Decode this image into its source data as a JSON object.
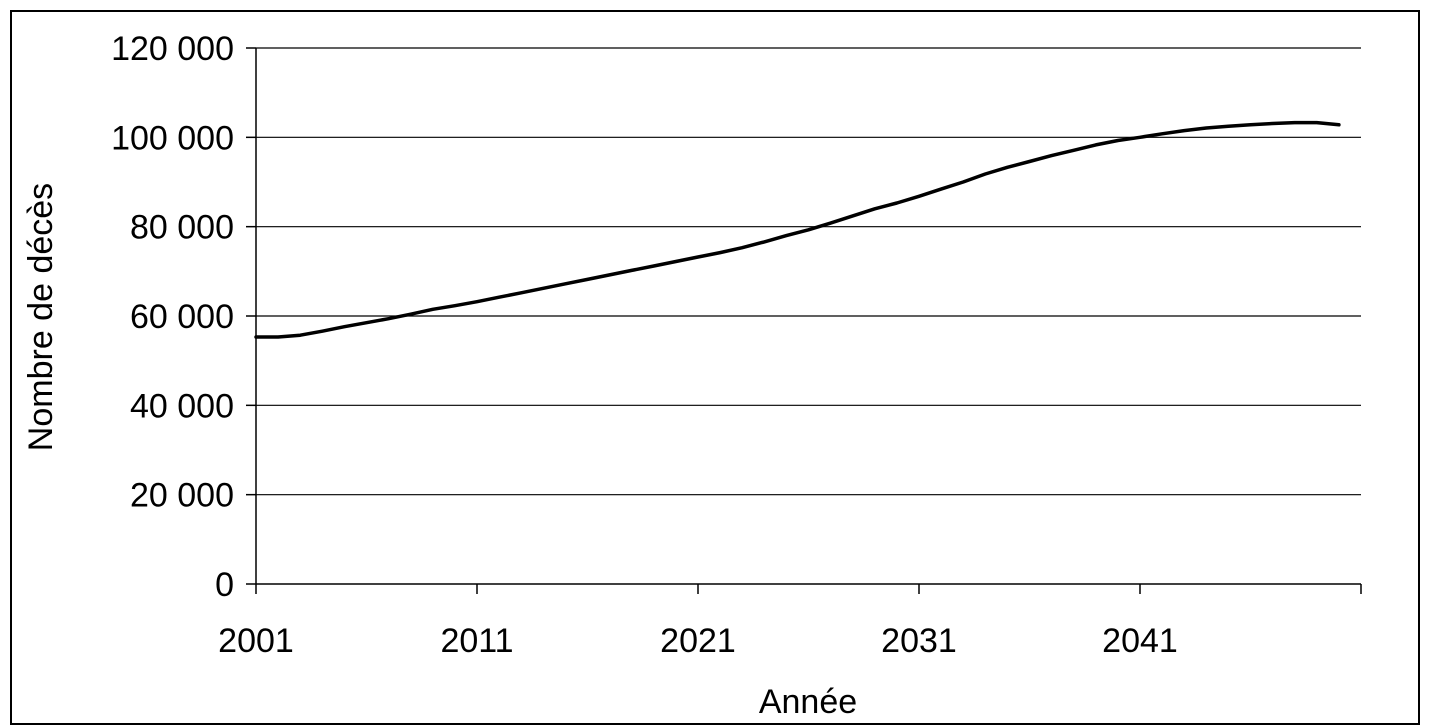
{
  "chart_data": {
    "type": "line",
    "title": "",
    "xlabel": "Année",
    "ylabel": "Nombre de décès",
    "xlim": [
      2001,
      2051
    ],
    "ylim": [
      0,
      120000
    ],
    "grid": true,
    "legend": "none",
    "x_ticks": [
      2001,
      2011,
      2021,
      2031,
      2041
    ],
    "x_tick_labels": [
      "2001",
      "2011",
      "2021",
      "2031",
      "2041"
    ],
    "y_ticks": [
      0,
      20000,
      40000,
      60000,
      80000,
      100000,
      120000
    ],
    "y_tick_labels": [
      "0",
      "20 000",
      "40 000",
      "60 000",
      "80 000",
      "100 000",
      "120 000"
    ],
    "series": [
      {
        "color": "#000000",
        "x": [
          2001,
          2002,
          2003,
          2004,
          2005,
          2006,
          2007,
          2008,
          2009,
          2010,
          2011,
          2012,
          2013,
          2014,
          2015,
          2016,
          2017,
          2018,
          2019,
          2020,
          2021,
          2022,
          2023,
          2024,
          2025,
          2026,
          2027,
          2028,
          2029,
          2030,
          2031,
          2032,
          2033,
          2034,
          2035,
          2036,
          2037,
          2038,
          2039,
          2040,
          2041,
          2042,
          2043,
          2044,
          2045,
          2046,
          2047,
          2048,
          2049,
          2050
        ],
        "values": [
          55300,
          55300,
          55700,
          56600,
          57600,
          58500,
          59400,
          60400,
          61500,
          62300,
          63200,
          64200,
          65200,
          66200,
          67200,
          68200,
          69200,
          70200,
          71200,
          72200,
          73200,
          74200,
          75300,
          76600,
          78000,
          79300,
          80800,
          82400,
          84000,
          85300,
          86800,
          88400,
          90000,
          91800,
          93300,
          94600,
          95900,
          97100,
          98300,
          99300,
          100000,
          100800,
          101500,
          102100,
          102500,
          102800,
          103100,
          103300,
          103300,
          102800
        ]
      }
    ]
  }
}
